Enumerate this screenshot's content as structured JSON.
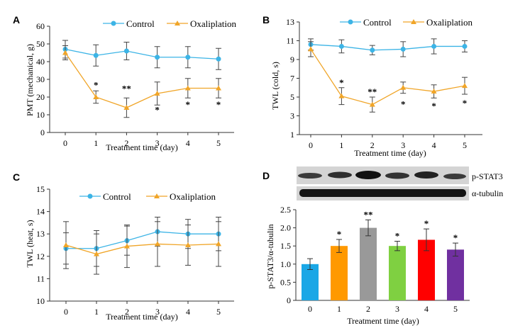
{
  "colors": {
    "control": "#3cb4e6",
    "oxali": "#f0a528",
    "axis": "#333333"
  },
  "chart_data": [
    {
      "panel_label": "A",
      "type": "line",
      "xlabel": "Treatment time (day)",
      "ylabel": "PMT (mechanical, g)",
      "x": [
        0,
        1,
        2,
        3,
        4,
        5
      ],
      "ylim": [
        0,
        60
      ],
      "yticks": [
        0,
        10,
        20,
        30,
        40,
        50,
        60
      ],
      "legend_position": "top",
      "series": [
        {
          "name": "Control",
          "marker": "circle",
          "values": [
            47,
            43.5,
            46,
            42.5,
            42.5,
            41.5
          ],
          "errors": [
            5,
            6,
            5,
            6,
            6,
            6
          ]
        },
        {
          "name": "Oxaliplation",
          "marker": "triangle",
          "values": [
            45,
            20,
            14,
            22,
            25,
            25
          ],
          "errors": [
            4,
            3.5,
            5.5,
            6.5,
            5.5,
            5.5
          ]
        }
      ],
      "annotations": [
        {
          "x": 1,
          "text": "*",
          "y": 27
        },
        {
          "x": 2,
          "text": "**",
          "y": 25
        },
        {
          "x": 3,
          "text": "*",
          "y": 13
        },
        {
          "x": 4,
          "text": "*",
          "y": 16
        },
        {
          "x": 5,
          "text": "*",
          "y": 16
        }
      ]
    },
    {
      "panel_label": "B",
      "type": "line",
      "xlabel": "Treatment time (day)",
      "ylabel": "TWL (cold, s)",
      "x": [
        0,
        1,
        2,
        3,
        4,
        5
      ],
      "ylim": [
        1,
        13
      ],
      "yticks": [
        1,
        3,
        5,
        7,
        9,
        11,
        13
      ],
      "legend_position": "top",
      "series": [
        {
          "name": "Control",
          "marker": "circle",
          "values": [
            10.6,
            10.4,
            10,
            10.1,
            10.4,
            10.4
          ],
          "errors": [
            0.6,
            0.7,
            0.5,
            0.8,
            0.8,
            0.6
          ]
        },
        {
          "name": "Oxaliplation",
          "marker": "triangle",
          "values": [
            10.1,
            5.1,
            4.2,
            6,
            5.6,
            6.2
          ],
          "errors": [
            0.8,
            0.9,
            0.8,
            0.6,
            0.7,
            0.9
          ]
        }
      ],
      "annotations": [
        {
          "x": 1,
          "text": "*",
          "y": 6.6
        },
        {
          "x": 2,
          "text": "**",
          "y": 5.6
        },
        {
          "x": 3,
          "text": "*",
          "y": 4.3
        },
        {
          "x": 4,
          "text": "*",
          "y": 4.1
        },
        {
          "x": 5,
          "text": "*",
          "y": 4.4
        }
      ]
    },
    {
      "panel_label": "C",
      "type": "line",
      "xlabel": "Treatment time (day)",
      "ylabel": "TWL (heat, s)",
      "x": [
        0,
        1,
        2,
        3,
        4,
        5
      ],
      "ylim": [
        10,
        15
      ],
      "yticks": [
        10,
        11,
        12,
        13,
        14,
        15
      ],
      "legend_position": "top",
      "series": [
        {
          "name": "Control",
          "marker": "circle",
          "values": [
            12.35,
            12.35,
            12.7,
            13.1,
            13,
            13
          ],
          "errors": [
            0.7,
            0.8,
            0.65,
            0.65,
            0.65,
            0.75
          ]
        },
        {
          "name": "Oxaliplation",
          "marker": "triangle",
          "values": [
            12.5,
            12.1,
            12.45,
            12.55,
            12.5,
            12.55
          ],
          "errors": [
            1.05,
            0.9,
            0.95,
            1,
            0.9,
            1
          ]
        }
      ],
      "annotations": []
    },
    {
      "panel_label": "D",
      "type": "bar",
      "xlabel": "Treatment time (day)",
      "ylabel": "p-STAT3/α-tubulin",
      "categories": [
        "0",
        "1",
        "2",
        "3",
        "4",
        "5"
      ],
      "values": [
        1.0,
        1.5,
        2.0,
        1.5,
        1.67,
        1.4
      ],
      "errors": [
        0.15,
        0.18,
        0.22,
        0.13,
        0.3,
        0.18
      ],
      "bar_colors": [
        "#1aa7e6",
        "#ff9900",
        "#999999",
        "#7fd041",
        "#ff0000",
        "#7030a0"
      ],
      "ylim": [
        0,
        2.5
      ],
      "yticks": [
        "0",
        "0.5",
        "1.0",
        "1.5",
        "2.0",
        "2.5"
      ],
      "annotations": [
        "",
        "*",
        "**",
        "*",
        "*",
        "*"
      ],
      "blot_labels": [
        "p-STAT3",
        "α-tubulin"
      ]
    }
  ]
}
